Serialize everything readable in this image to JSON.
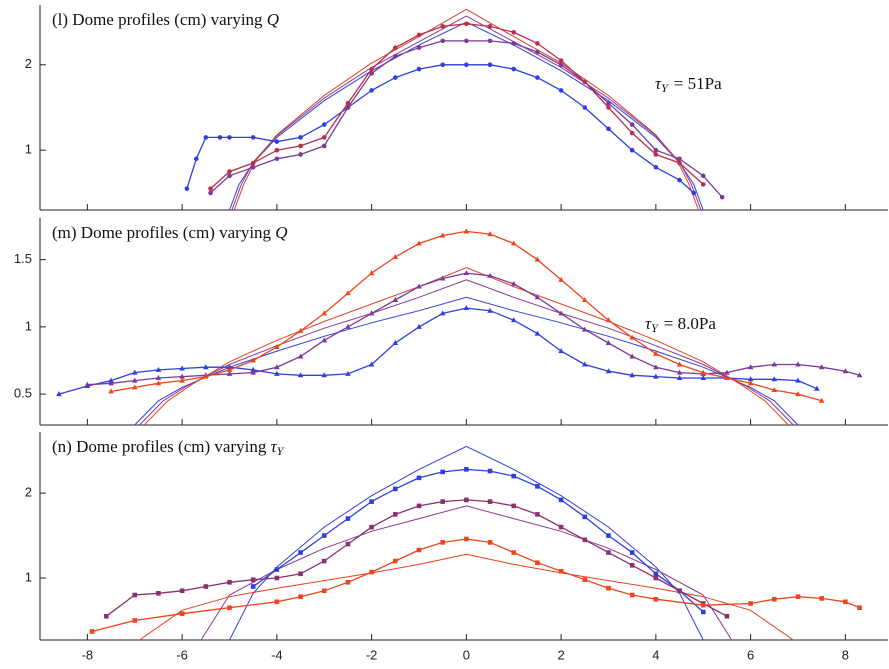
{
  "chart_data": [
    {
      "type": "line",
      "title": "(l) Dome profiles (cm) varying",
      "title_symbol": "Q",
      "annotation": {
        "symbol": "τ",
        "sub": "Y",
        "text": "= 51Pa"
      },
      "xlim": [
        -9,
        8.9
      ],
      "xticks": [
        -8,
        -6,
        -4,
        -2,
        0,
        2,
        4,
        6,
        8
      ],
      "show_xtick_labels": false,
      "ylim": [
        0.3,
        2.7
      ],
      "yticks": [
        1,
        2
      ],
      "series": [
        {
          "marker": "none",
          "color": "#2d3fe0",
          "x": [
            -5,
            -4.8,
            -4.5,
            -4,
            -3,
            -2,
            -1,
            0,
            1,
            2,
            3,
            4,
            4.5,
            4.8,
            5
          ],
          "values": [
            0.3,
            0.6,
            0.85,
            1.15,
            1.58,
            1.93,
            2.23,
            2.5,
            2.23,
            1.93,
            1.58,
            1.15,
            0.85,
            0.6,
            0.3
          ]
        },
        {
          "marker": "none",
          "color": "#8a3a8f",
          "x": [
            -4.95,
            -4.75,
            -4.5,
            -4,
            -3,
            -2,
            -1,
            0,
            1,
            2,
            3,
            4,
            4.5,
            4.75,
            4.95
          ],
          "values": [
            0.3,
            0.6,
            0.86,
            1.17,
            1.61,
            1.97,
            2.27,
            2.57,
            2.27,
            1.97,
            1.61,
            1.17,
            0.86,
            0.6,
            0.3
          ]
        },
        {
          "marker": "none",
          "color": "#d8402a",
          "x": [
            -4.9,
            -4.7,
            -4.45,
            -4,
            -3,
            -2,
            -1,
            0,
            1,
            2,
            3,
            4,
            4.45,
            4.7,
            4.9
          ],
          "values": [
            0.3,
            0.6,
            0.88,
            1.18,
            1.64,
            2.02,
            2.33,
            2.65,
            2.33,
            2.02,
            1.64,
            1.18,
            0.88,
            0.6,
            0.3
          ]
        },
        {
          "marker": "circle",
          "color": "#2d3fe0",
          "x": [
            -5.9,
            -5.7,
            -5.5,
            -5.2,
            -5,
            -4.5,
            -4,
            -3.5,
            -3,
            -2.5,
            -2,
            -1.5,
            -1,
            -0.5,
            0,
            0.5,
            1,
            1.5,
            2,
            2.5,
            3,
            3.5,
            4,
            4.5,
            4.8
          ],
          "values": [
            0.55,
            0.9,
            1.15,
            1.15,
            1.15,
            1.15,
            1.1,
            1.15,
            1.3,
            1.5,
            1.7,
            1.85,
            1.95,
            2,
            2,
            2,
            1.95,
            1.85,
            1.7,
            1.5,
            1.25,
            1,
            0.8,
            0.65,
            0.5
          ]
        },
        {
          "marker": "circle",
          "color": "#7a3a9a",
          "x": [
            -5.4,
            -5,
            -4.5,
            -4,
            -3.5,
            -3,
            -2.5,
            -2,
            -1.5,
            -1,
            -0.5,
            0,
            0.5,
            1,
            1.5,
            2,
            2.5,
            3,
            3.5,
            4,
            4.5,
            5,
            5.4
          ],
          "values": [
            0.5,
            0.7,
            0.8,
            0.9,
            0.95,
            1.05,
            1.5,
            1.9,
            2.1,
            2.2,
            2.28,
            2.28,
            2.28,
            2.25,
            2.15,
            2,
            1.8,
            1.55,
            1.3,
            1,
            0.9,
            0.7,
            0.45
          ]
        },
        {
          "marker": "circle",
          "color": "#b8304a",
          "x": [
            -5.4,
            -5,
            -4.5,
            -4,
            -3.5,
            -3,
            -2.5,
            -2,
            -1.5,
            -1,
            -0.5,
            0,
            0.5,
            1,
            1.5,
            2,
            2.5,
            3,
            3.5,
            4,
            4.5,
            5
          ],
          "values": [
            0.55,
            0.75,
            0.85,
            1,
            1.05,
            1.15,
            1.55,
            1.95,
            2.2,
            2.35,
            2.45,
            2.48,
            2.45,
            2.38,
            2.25,
            2.05,
            1.8,
            1.5,
            1.2,
            0.95,
            0.85,
            0.6
          ]
        }
      ]
    },
    {
      "type": "line",
      "title": "(m) Dome profiles (cm) varying",
      "title_symbol": "Q",
      "annotation": {
        "symbol": "τ",
        "sub": "Y",
        "text": "= 8.0Pa"
      },
      "xlim": [
        -9,
        8.9
      ],
      "xticks": [
        -8,
        -6,
        -4,
        -2,
        0,
        2,
        4,
        6,
        8
      ],
      "show_xtick_labels": false,
      "ylim": [
        0.27,
        1.81
      ],
      "yticks": [
        0.5,
        1,
        1.5
      ],
      "series": [
        {
          "marker": "none",
          "color": "#2d3fe0",
          "x": [
            -7,
            -6.5,
            -6,
            -5,
            -4,
            -3,
            -2,
            -1,
            0,
            1,
            2,
            3,
            4,
            5,
            6,
            6.5,
            7
          ],
          "values": [
            0.27,
            0.45,
            0.55,
            0.7,
            0.82,
            0.93,
            1.03,
            1.12,
            1.22,
            1.12,
            1.03,
            0.93,
            0.82,
            0.7,
            0.55,
            0.45,
            0.27
          ]
        },
        {
          "marker": "none",
          "color": "#8a3a8f",
          "x": [
            -6.9,
            -6.4,
            -5.9,
            -5,
            -4,
            -3,
            -2,
            -1,
            0,
            1,
            2,
            3,
            4,
            5,
            5.9,
            6.4,
            6.9
          ],
          "values": [
            0.27,
            0.45,
            0.56,
            0.72,
            0.86,
            0.99,
            1.1,
            1.22,
            1.35,
            1.22,
            1.1,
            0.99,
            0.86,
            0.72,
            0.56,
            0.45,
            0.27
          ]
        },
        {
          "marker": "none",
          "color": "#e0442a",
          "x": [
            -6.8,
            -6.3,
            -5.8,
            -5,
            -4,
            -3,
            -2,
            -1,
            0,
            1,
            2,
            3,
            4,
            5,
            5.8,
            6.3,
            6.8
          ],
          "values": [
            0.27,
            0.45,
            0.57,
            0.74,
            0.9,
            1.04,
            1.17,
            1.3,
            1.44,
            1.3,
            1.17,
            1.04,
            0.9,
            0.74,
            0.57,
            0.45,
            0.27
          ]
        },
        {
          "marker": "triangle",
          "color": "#2d3fe0",
          "x": [
            -8.6,
            -8,
            -7.5,
            -7,
            -6.5,
            -6,
            -5.5,
            -5,
            -4.5,
            -4,
            -3.5,
            -3,
            -2.5,
            -2,
            -1.5,
            -1,
            -0.5,
            0,
            0.5,
            1,
            1.5,
            2,
            2.5,
            3,
            3.5,
            4,
            4.5,
            5,
            5.5,
            6,
            6.5,
            7,
            7.4
          ],
          "values": [
            0.5,
            0.56,
            0.6,
            0.66,
            0.68,
            0.69,
            0.7,
            0.7,
            0.68,
            0.65,
            0.64,
            0.64,
            0.65,
            0.72,
            0.88,
            1,
            1.1,
            1.14,
            1.12,
            1.05,
            0.95,
            0.82,
            0.72,
            0.67,
            0.64,
            0.63,
            0.62,
            0.62,
            0.62,
            0.61,
            0.61,
            0.6,
            0.54
          ]
        },
        {
          "marker": "triangle",
          "color": "#7a3a9a",
          "x": [
            -8,
            -7.5,
            -7,
            -6.5,
            -6,
            -5.5,
            -5,
            -4.5,
            -4,
            -3.5,
            -3,
            -2.5,
            -2,
            -1.5,
            -1,
            -0.5,
            0,
            0.5,
            1,
            1.5,
            2,
            2.5,
            3,
            3.5,
            4,
            4.5,
            5,
            5.5,
            6,
            6.5,
            7,
            7.5,
            8,
            8.3
          ],
          "values": [
            0.57,
            0.58,
            0.6,
            0.62,
            0.63,
            0.64,
            0.65,
            0.66,
            0.7,
            0.78,
            0.9,
            1,
            1.1,
            1.2,
            1.3,
            1.36,
            1.4,
            1.38,
            1.32,
            1.22,
            1.1,
            0.98,
            0.88,
            0.78,
            0.7,
            0.66,
            0.65,
            0.66,
            0.7,
            0.72,
            0.72,
            0.7,
            0.67,
            0.64
          ]
        },
        {
          "marker": "triangle",
          "color": "#f0441a",
          "x": [
            -7.5,
            -7,
            -6.5,
            -6,
            -5.5,
            -5,
            -4.5,
            -4,
            -3.5,
            -3,
            -2.5,
            -2,
            -1.5,
            -1,
            -0.5,
            0,
            0.5,
            1,
            1.5,
            2,
            2.5,
            3,
            3.5,
            4,
            4.5,
            5,
            5.5,
            6,
            6.5,
            7,
            7.5
          ],
          "values": [
            0.52,
            0.55,
            0.58,
            0.6,
            0.63,
            0.68,
            0.75,
            0.85,
            0.97,
            1.1,
            1.25,
            1.4,
            1.52,
            1.62,
            1.68,
            1.71,
            1.69,
            1.62,
            1.5,
            1.35,
            1.2,
            1.05,
            0.92,
            0.8,
            0.72,
            0.66,
            0.62,
            0.58,
            0.53,
            0.5,
            0.45
          ]
        }
      ]
    },
    {
      "type": "line",
      "title": "(n) Dome profiles (cm) varying",
      "title_symbol": "τ",
      "title_symbol_sub": "Y",
      "xlim": [
        -9,
        8.9
      ],
      "xticks": [
        -8,
        -6,
        -4,
        -2,
        0,
        2,
        4,
        6,
        8
      ],
      "show_xtick_labels": true,
      "ylim": [
        0.27,
        2.72
      ],
      "yticks": [
        1,
        2
      ],
      "series": [
        {
          "marker": "none",
          "color": "#2d3fe0",
          "x": [
            -5,
            -4.5,
            -4,
            -3,
            -2,
            -1,
            0,
            1,
            2,
            3,
            4,
            4.5,
            5
          ],
          "values": [
            0.27,
            0.82,
            1.13,
            1.6,
            1.97,
            2.28,
            2.55,
            2.28,
            1.97,
            1.6,
            1.13,
            0.82,
            0.27
          ]
        },
        {
          "marker": "none",
          "color": "#8a3a8f",
          "x": [
            -5.6,
            -5,
            -4,
            -3,
            -2,
            -1,
            0,
            1,
            2,
            3,
            4,
            5,
            5.6
          ],
          "values": [
            0.27,
            0.8,
            1.1,
            1.35,
            1.55,
            1.7,
            1.85,
            1.7,
            1.55,
            1.35,
            1.1,
            0.8,
            0.27
          ]
        },
        {
          "marker": "none",
          "color": "#e8401c",
          "x": [
            -6.9,
            -6,
            -5,
            -4,
            -3,
            -2,
            -1,
            0,
            1,
            2,
            3,
            4,
            5,
            6,
            6.9
          ],
          "values": [
            0.27,
            0.62,
            0.78,
            0.88,
            0.97,
            1.06,
            1.16,
            1.28,
            1.16,
            1.06,
            0.97,
            0.88,
            0.78,
            0.62,
            0.27
          ]
        },
        {
          "marker": "square",
          "color": "#2d3fe0",
          "x": [
            -4.5,
            -4,
            -3.5,
            -3,
            -2.5,
            -2,
            -1.5,
            -1,
            -0.5,
            0,
            0.5,
            1,
            1.5,
            2,
            2.5,
            3,
            3.5,
            4,
            4.5,
            5
          ],
          "values": [
            0.9,
            1.1,
            1.3,
            1.5,
            1.7,
            1.9,
            2.05,
            2.18,
            2.25,
            2.28,
            2.26,
            2.2,
            2.08,
            1.92,
            1.72,
            1.5,
            1.3,
            1.05,
            0.85,
            0.6
          ]
        },
        {
          "marker": "square",
          "color": "#8a3070",
          "x": [
            -7.6,
            -7,
            -6.5,
            -6,
            -5.5,
            -5,
            -4.5,
            -4,
            -3.5,
            -3,
            -2.5,
            -2,
            -1.5,
            -1,
            -0.5,
            0,
            0.5,
            1,
            1.5,
            2,
            2.5,
            3,
            3.5,
            4,
            4.5,
            5,
            5.5
          ],
          "values": [
            0.55,
            0.8,
            0.82,
            0.85,
            0.9,
            0.95,
            0.98,
            1,
            1.05,
            1.2,
            1.4,
            1.6,
            1.75,
            1.85,
            1.9,
            1.92,
            1.9,
            1.85,
            1.75,
            1.6,
            1.45,
            1.3,
            1.15,
            1,
            0.85,
            0.7,
            0.55
          ]
        },
        {
          "marker": "square",
          "color": "#f0441a",
          "x": [
            -7.9,
            -7,
            -6,
            -5,
            -4,
            -3.5,
            -3,
            -2.5,
            -2,
            -1.5,
            -1,
            -0.5,
            0,
            0.5,
            1,
            1.5,
            2,
            2.5,
            3,
            3.5,
            4,
            5,
            6,
            6.5,
            7,
            7.5,
            8,
            8.3
          ],
          "values": [
            0.37,
            0.5,
            0.58,
            0.65,
            0.72,
            0.78,
            0.85,
            0.95,
            1.07,
            1.2,
            1.33,
            1.42,
            1.46,
            1.42,
            1.3,
            1.18,
            1.08,
            0.98,
            0.88,
            0.8,
            0.75,
            0.68,
            0.7,
            0.75,
            0.78,
            0.76,
            0.72,
            0.65
          ]
        }
      ]
    }
  ]
}
